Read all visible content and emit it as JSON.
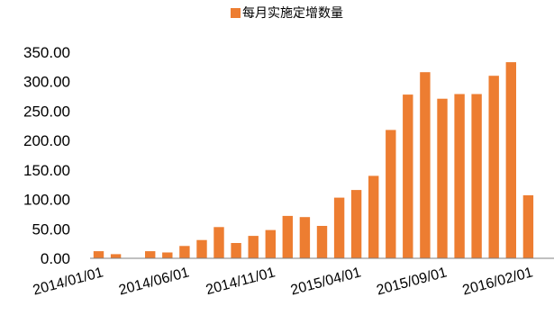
{
  "chart_data": {
    "type": "bar",
    "title": "",
    "xlabel": "",
    "ylabel": "",
    "ylim": [
      0,
      350
    ],
    "yticks": [
      "0.00",
      "50.00",
      "100.00",
      "150.00",
      "200.00",
      "250.00",
      "300.00",
      "350.00"
    ],
    "grid": false,
    "legend_position": "top-center",
    "color": "#ED7D31",
    "categories": [
      "2014/01/01",
      "2014/02/01",
      "2014/03/01",
      "2014/04/01",
      "2014/05/01",
      "2014/06/01",
      "2014/07/01",
      "2014/08/01",
      "2014/09/01",
      "2014/10/01",
      "2014/11/01",
      "2014/12/01",
      "2015/01/01",
      "2015/02/01",
      "2015/03/01",
      "2015/04/01",
      "2015/05/01",
      "2015/06/01",
      "2015/07/01",
      "2015/08/01",
      "2015/09/01",
      "2015/10/01",
      "2015/11/01",
      "2015/12/01",
      "2016/01/01",
      "2016/02/01",
      "2016/03/01"
    ],
    "x_tick_labels": [
      "2014/01/01",
      "2014/06/01",
      "2014/11/01",
      "2015/04/01",
      "2015/09/01",
      "2016/02/01"
    ],
    "series": [
      {
        "name": "每月实施定增数量",
        "values": [
          12,
          7,
          0,
          12,
          10,
          21,
          31,
          53,
          26,
          38,
          48,
          72,
          70,
          55,
          103,
          116,
          140,
          218,
          278,
          316,
          271,
          279,
          279,
          310,
          333,
          107,
          0
        ]
      }
    ]
  }
}
